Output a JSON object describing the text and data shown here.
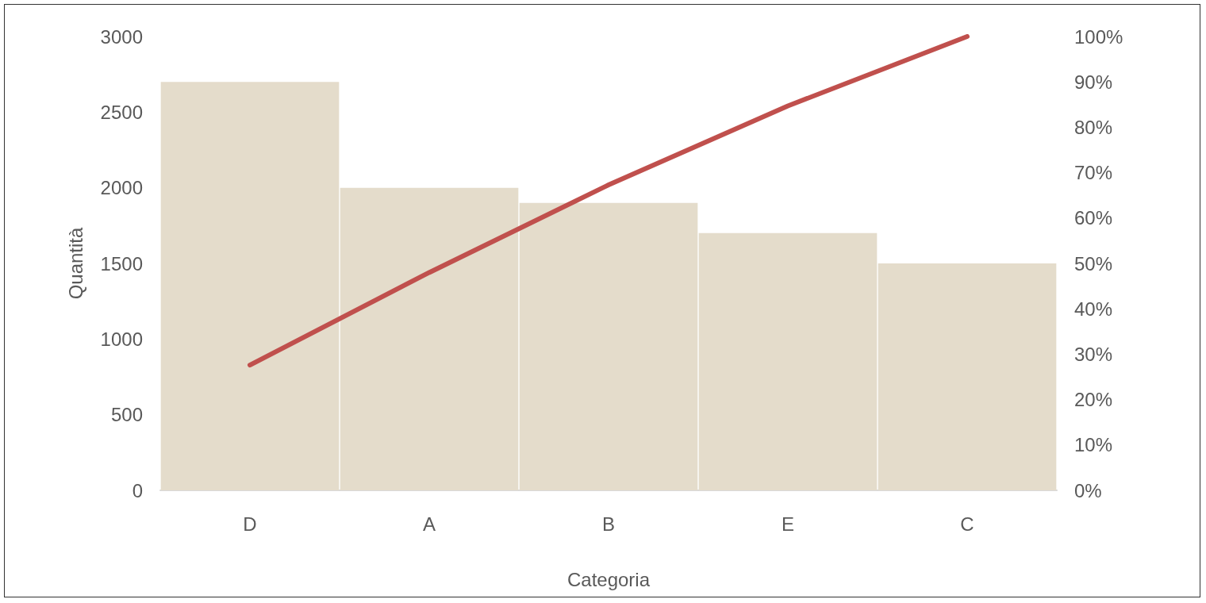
{
  "chart_data": {
    "type": "bar",
    "xlabel": "Categoria",
    "ylabel": "Quantità",
    "categories": [
      "D",
      "A",
      "B",
      "E",
      "C"
    ],
    "series": [
      {
        "color": "#e4dccb",
        "values": [
          2700,
          2000,
          1900,
          1700,
          1500
        ]
      },
      {
        "type": "line",
        "axis": "y2",
        "color": "#c0504d",
        "values": [
          27.6,
          48.0,
          67.3,
          84.7,
          100
        ]
      }
    ],
    "ylim": [
      0,
      3000
    ],
    "yticks": [
      0,
      500,
      1000,
      1500,
      2000,
      2500,
      3000
    ],
    "y2lim": [
      0,
      100
    ],
    "y2ticks": [
      {
        "value": 0,
        "label": "0%"
      },
      {
        "value": 10,
        "label": "10%"
      },
      {
        "value": 20,
        "label": "20%"
      },
      {
        "value": 30,
        "label": "30%"
      },
      {
        "value": 40,
        "label": "40%"
      },
      {
        "value": 50,
        "label": "50%"
      },
      {
        "value": 60,
        "label": "60%"
      },
      {
        "value": 70,
        "label": "70%"
      },
      {
        "value": 80,
        "label": "80%"
      },
      {
        "value": 90,
        "label": "90%"
      },
      {
        "value": 100,
        "label": "100%"
      }
    ],
    "grid": false,
    "marker": "none",
    "line_style": "solid"
  }
}
